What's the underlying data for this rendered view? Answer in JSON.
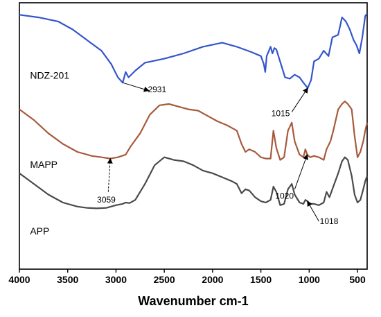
{
  "chart_data": {
    "type": "line",
    "title": "",
    "xlabel": "Wavenumber cm-1",
    "ylabel": "",
    "x_ticks": [
      4000,
      3500,
      3000,
      2500,
      2000,
      1500,
      1000,
      500
    ],
    "xlim": [
      4000,
      400
    ],
    "x_reversed": true,
    "y_ticks_shown": false,
    "grid": false,
    "series": [
      {
        "name": "NDZ-201",
        "color": "#3355cc",
        "x": [
          4000,
          3800,
          3600,
          3450,
          3300,
          3150,
          3050,
          2980,
          2931,
          2900,
          2870,
          2800,
          2700,
          2500,
          2300,
          2100,
          1900,
          1750,
          1600,
          1500,
          1470,
          1455,
          1440,
          1400,
          1380,
          1360,
          1340,
          1250,
          1200,
          1150,
          1100,
          1060,
          1015,
          980,
          950,
          900,
          850,
          800,
          760,
          700,
          660,
          620,
          580,
          540,
          510,
          480,
          450,
          420,
          400
        ],
        "values": [
          0.955,
          0.945,
          0.93,
          0.9,
          0.86,
          0.82,
          0.77,
          0.72,
          0.7,
          0.74,
          0.72,
          0.745,
          0.775,
          0.79,
          0.81,
          0.835,
          0.85,
          0.835,
          0.815,
          0.8,
          0.77,
          0.74,
          0.8,
          0.835,
          0.81,
          0.83,
          0.825,
          0.72,
          0.715,
          0.73,
          0.72,
          0.7,
          0.68,
          0.71,
          0.78,
          0.79,
          0.82,
          0.8,
          0.87,
          0.88,
          0.945,
          0.93,
          0.9,
          0.86,
          0.84,
          0.81,
          0.87,
          0.95,
          0.96
        ]
      },
      {
        "name": "MAPP",
        "color": "#a65a3c",
        "x": [
          4000,
          3850,
          3700,
          3550,
          3400,
          3250,
          3150,
          3059,
          2980,
          2900,
          2850,
          2750,
          2650,
          2550,
          2450,
          2350,
          2250,
          2150,
          2050,
          1950,
          1850,
          1750,
          1700,
          1660,
          1620,
          1560,
          1500,
          1450,
          1400,
          1370,
          1340,
          1300,
          1260,
          1220,
          1180,
          1150,
          1100,
          1060,
          1040,
          1020,
          990,
          950,
          900,
          850,
          820,
          780,
          750,
          700,
          660,
          630,
          600,
          560,
          530,
          500,
          470,
          440,
          420,
          400
        ],
        "values": [
          0.6,
          0.56,
          0.51,
          0.47,
          0.44,
          0.425,
          0.42,
          0.415,
          0.42,
          0.43,
          0.46,
          0.51,
          0.58,
          0.615,
          0.62,
          0.61,
          0.6,
          0.595,
          0.575,
          0.555,
          0.54,
          0.52,
          0.47,
          0.44,
          0.45,
          0.44,
          0.42,
          0.415,
          0.415,
          0.52,
          0.455,
          0.41,
          0.42,
          0.52,
          0.55,
          0.48,
          0.43,
          0.42,
          0.45,
          0.43,
          0.42,
          0.425,
          0.42,
          0.41,
          0.45,
          0.48,
          0.52,
          0.6,
          0.62,
          0.63,
          0.62,
          0.6,
          0.5,
          0.42,
          0.44,
          0.48,
          0.52,
          0.55
        ]
      },
      {
        "name": "APP",
        "color": "#4a4a4a",
        "x": [
          4000,
          3850,
          3700,
          3550,
          3400,
          3300,
          3200,
          3100,
          3000,
          2930,
          2900,
          2860,
          2800,
          2700,
          2600,
          2500,
          2400,
          2300,
          2200,
          2100,
          2000,
          1900,
          1800,
          1750,
          1700,
          1660,
          1620,
          1560,
          1500,
          1450,
          1400,
          1370,
          1340,
          1300,
          1260,
          1220,
          1180,
          1150,
          1100,
          1060,
          1040,
          1018,
          990,
          950,
          900,
          850,
          820,
          790,
          760,
          700,
          660,
          630,
          600,
          560,
          530,
          500,
          470,
          440,
          420,
          400
        ],
        "values": [
          0.36,
          0.32,
          0.28,
          0.25,
          0.235,
          0.23,
          0.228,
          0.23,
          0.24,
          0.245,
          0.25,
          0.248,
          0.26,
          0.32,
          0.39,
          0.42,
          0.41,
          0.405,
          0.39,
          0.37,
          0.36,
          0.345,
          0.33,
          0.32,
          0.285,
          0.3,
          0.295,
          0.27,
          0.255,
          0.25,
          0.26,
          0.31,
          0.29,
          0.24,
          0.245,
          0.3,
          0.32,
          0.28,
          0.25,
          0.245,
          0.26,
          0.255,
          0.245,
          0.245,
          0.24,
          0.25,
          0.29,
          0.27,
          0.3,
          0.36,
          0.405,
          0.42,
          0.41,
          0.35,
          0.28,
          0.25,
          0.26,
          0.3,
          0.33,
          0.35
        ]
      }
    ],
    "annotations": [
      {
        "text": "2931",
        "series": 0,
        "x": 2931
      },
      {
        "text": "1015",
        "series": 0,
        "x": 1015
      },
      {
        "text": "3059",
        "series": 1,
        "x": 3059
      },
      {
        "text": "1020",
        "series": 1,
        "x": 1020
      },
      {
        "text": "1018",
        "series": 2,
        "x": 1018
      }
    ],
    "legend": "inline labels left of each curve"
  }
}
